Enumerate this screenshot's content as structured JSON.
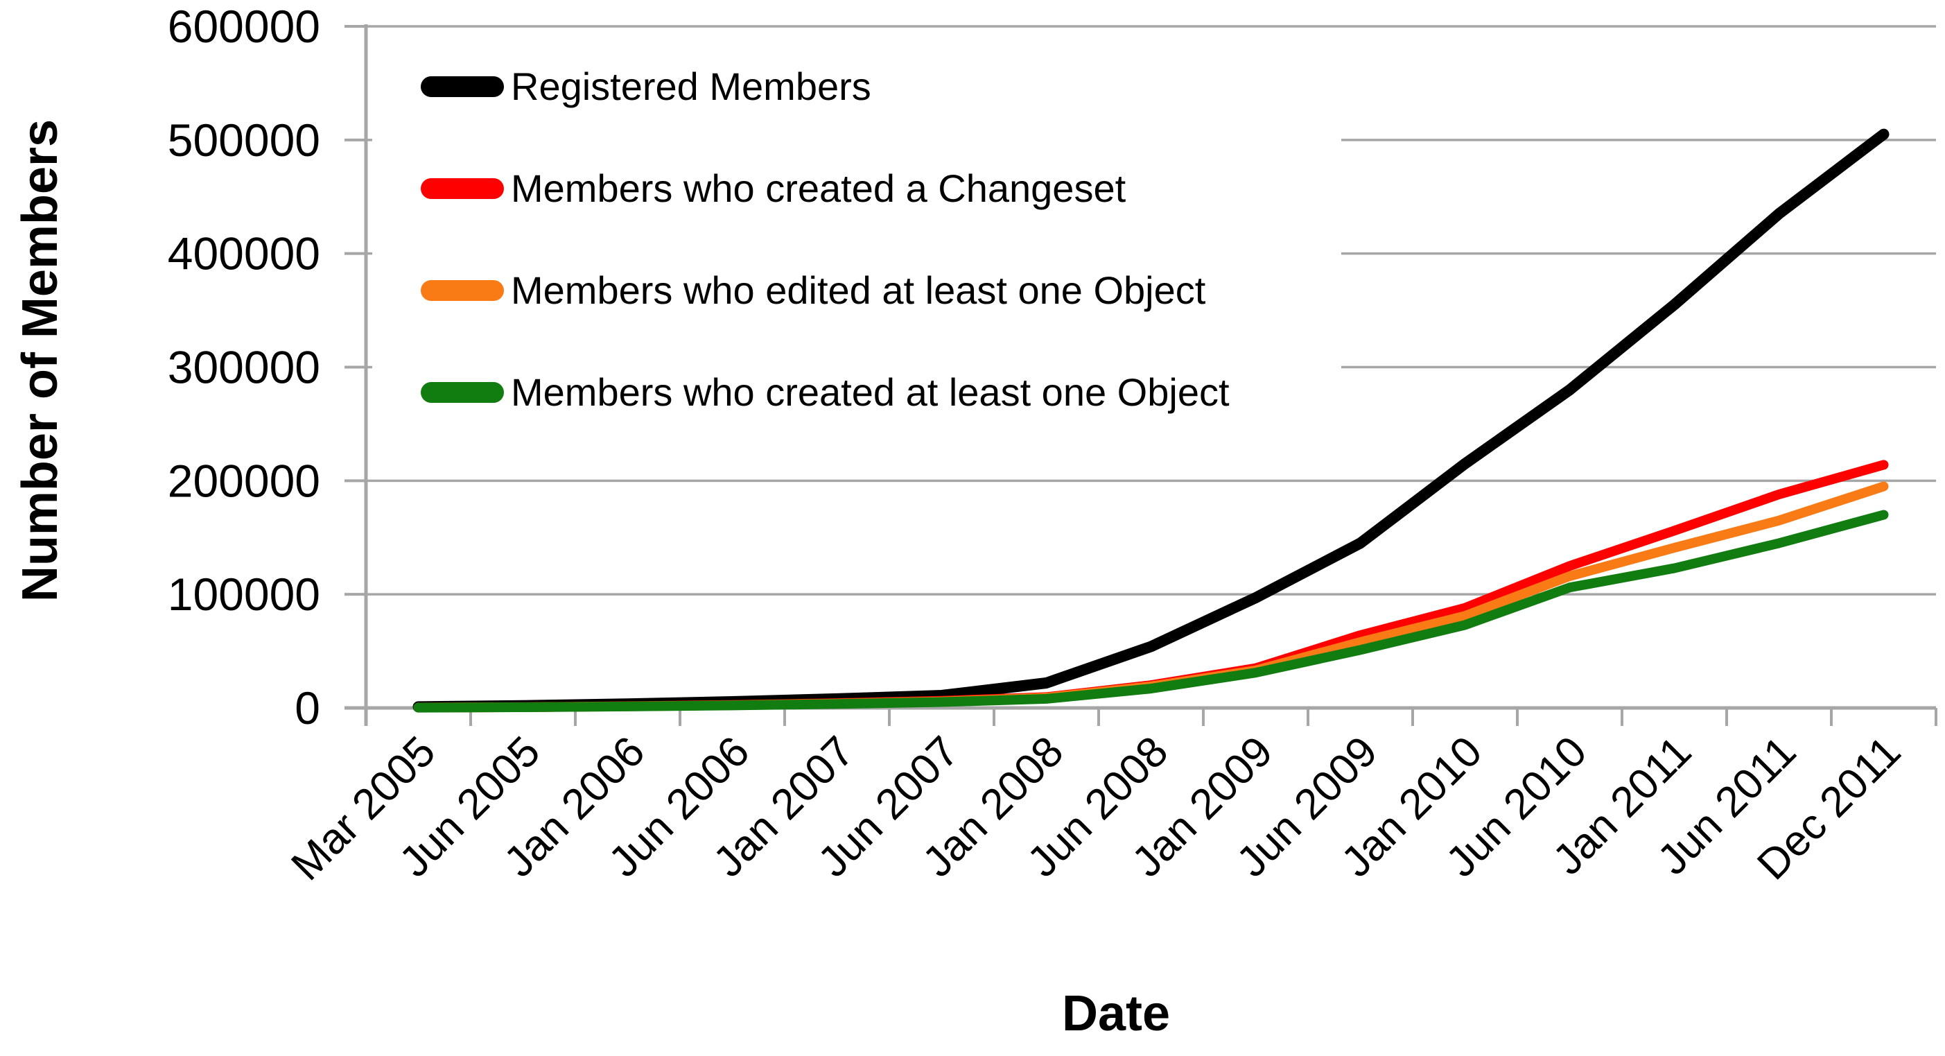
{
  "chart_data": {
    "type": "line",
    "title": "",
    "xlabel": "Date",
    "ylabel": "Number of Members",
    "ylim": [
      0,
      600000
    ],
    "ytick_step": 100000,
    "y_tick_labels": [
      "0",
      "100000",
      "200000",
      "300000",
      "400000",
      "500000",
      "600000"
    ],
    "grid": true,
    "legend_position": "top-left",
    "categories": [
      "Mar 2005",
      "Jun 2005",
      "Jan 2006",
      "Jun 2006",
      "Jan 2007",
      "Jun 2007",
      "Jan 2008",
      "Jun 2008",
      "Jan 2009",
      "Jun 2009",
      "Jan 2010",
      "Jun 2010",
      "Jan 2011",
      "Jun 2011",
      "Dec 2011"
    ],
    "series": [
      {
        "name": "Registered Members",
        "color": "#000000",
        "values": [
          1000,
          2000,
          3500,
          5500,
          8000,
          11000,
          22000,
          54000,
          97000,
          145000,
          215000,
          280000,
          355000,
          435000,
          505000
        ]
      },
      {
        "name": "Members who created a Changeset",
        "color": "#fe0000",
        "values": [
          300,
          700,
          1500,
          2600,
          4200,
          6200,
          9500,
          20000,
          35000,
          64000,
          88000,
          125000,
          156000,
          188000,
          214000
        ]
      },
      {
        "name": "Members who edited at least one Object",
        "color": "#f97b16",
        "values": [
          300,
          650,
          1400,
          2400,
          3800,
          5700,
          9000,
          19000,
          33000,
          58000,
          81000,
          116000,
          141000,
          165000,
          195000
        ]
      },
      {
        "name": "Members who created at least one Object",
        "color": "#117d11",
        "values": [
          250,
          600,
          1300,
          2200,
          3500,
          5200,
          8000,
          17000,
          31000,
          51000,
          73000,
          106000,
          123000,
          145000,
          170000
        ]
      }
    ]
  },
  "style": {
    "gridline_color": "#a6a6a6",
    "axis_color": "#a6a6a6",
    "background": "#ffffff",
    "text_color": "#000000"
  }
}
